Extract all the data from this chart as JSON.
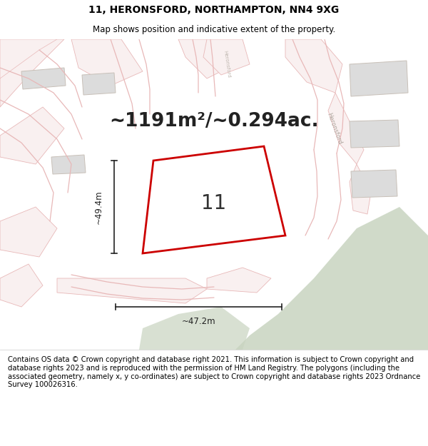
{
  "title_line1": "11, HERONSFORD, NORTHAMPTON, NN4 9XG",
  "title_line2": "Map shows position and indicative extent of the property.",
  "area_text": "~1191m²/~0.294ac.",
  "plot_number": "11",
  "dim_vertical": "~49.4m",
  "dim_horizontal": "~47.2m",
  "footer_text": "Contains OS data © Crown copyright and database right 2021. This information is subject to Crown copyright and database rights 2023 and is reproduced with the permission of HM Land Registry. The polygons (including the associated geometry, namely x, y co-ordinates) are subject to Crown copyright and database rights 2023 Ordnance Survey 100026316.",
  "bg_color": "#ffffff",
  "map_bg": "#f5f5f5",
  "road_color": "#e8b8b8",
  "road_fill": "#f9f0f0",
  "building_fill": "#dcdcdc",
  "building_edge": "#c8c0b8",
  "plot_fill": "#ffffff",
  "plot_edge": "#cc0000",
  "green_fill": "#c8d4c0",
  "dim_color": "#222222",
  "title_fontsize": 10,
  "subtitle_fontsize": 8.5,
  "area_fontsize": 19,
  "plot_num_fontsize": 20,
  "footer_fontsize": 7.2,
  "map_border_color": "#dddddd"
}
